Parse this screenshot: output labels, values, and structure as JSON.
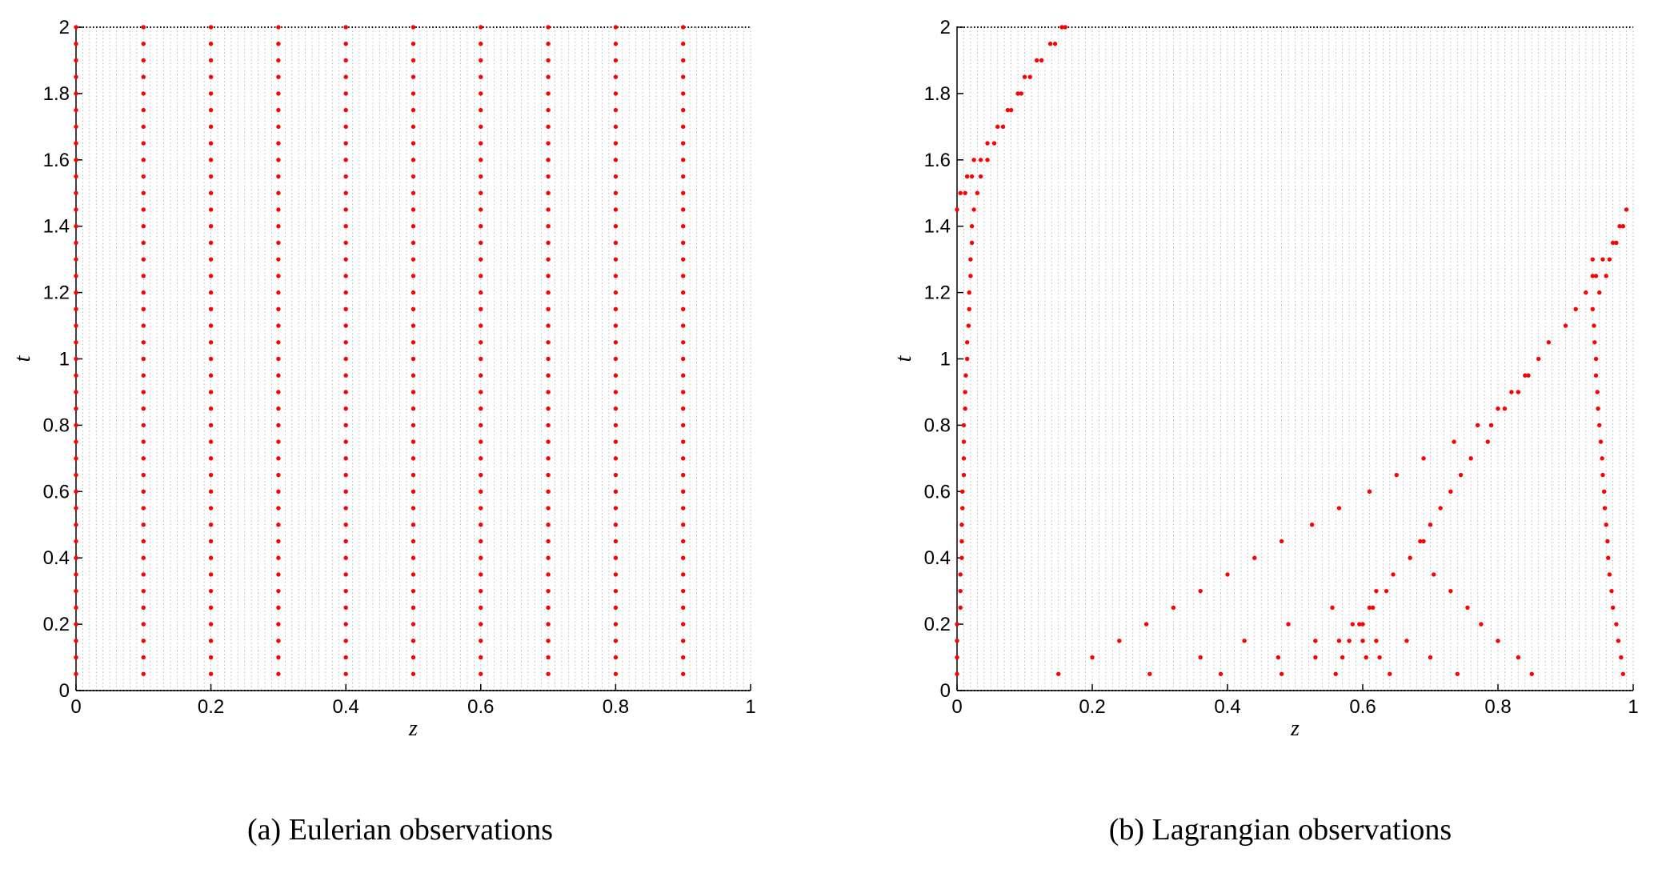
{
  "chart_data": [
    {
      "type": "scatter",
      "caption": "(a) Eulerian observations",
      "xlabel": "z",
      "ylabel": "t",
      "xlim": [
        0,
        1
      ],
      "ylim": [
        0,
        2
      ],
      "xticks": [
        0,
        0.2,
        0.4,
        0.6,
        0.8,
        1
      ],
      "xtick_labels": [
        "0",
        "0.2",
        "0.4",
        "0.6",
        "0.8",
        "1"
      ],
      "yticks": [
        0,
        0.2,
        0.4,
        0.6,
        0.8,
        1,
        1.2,
        1.4,
        1.6,
        1.8,
        2
      ],
      "ytick_labels": [
        "0",
        "0.2",
        "0.4",
        "0.6",
        "0.8",
        "1",
        "1.2",
        "1.4",
        "1.6",
        "1.8",
        "2"
      ],
      "grid": "dotted mesh of computational nodes",
      "mesh": {
        "dz": 0.01,
        "dt": 0.02
      },
      "marker_color": "#ff0000",
      "series": [
        {
          "z_positions": [
            0,
            0.1,
            0.2,
            0.3,
            0.4,
            0.5,
            0.6,
            0.7,
            0.8,
            0.9
          ],
          "t_values": [
            0.05,
            0.1,
            0.15,
            0.2,
            0.25,
            0.3,
            0.35,
            0.4,
            0.45,
            0.5,
            0.55,
            0.6,
            0.65,
            0.7,
            0.75,
            0.8,
            0.85,
            0.9,
            0.95,
            1.0,
            1.05,
            1.1,
            1.15,
            1.2,
            1.25,
            1.3,
            1.35,
            1.4,
            1.45,
            1.5,
            1.55,
            1.6,
            1.65,
            1.7,
            1.75,
            1.8,
            1.85,
            1.9,
            1.95,
            2.0
          ]
        }
      ]
    },
    {
      "type": "scatter",
      "caption": "(b) Lagrangian observations",
      "xlabel": "z",
      "ylabel": "t",
      "xlim": [
        0,
        1
      ],
      "ylim": [
        0,
        2
      ],
      "xticks": [
        0,
        0.2,
        0.4,
        0.6,
        0.8,
        1
      ],
      "xtick_labels": [
        "0",
        "0.2",
        "0.4",
        "0.6",
        "0.8",
        "1"
      ],
      "yticks": [
        0,
        0.2,
        0.4,
        0.6,
        0.8,
        1,
        1.2,
        1.4,
        1.6,
        1.8,
        2
      ],
      "ytick_labels": [
        "0",
        "0.2",
        "0.4",
        "0.6",
        "0.8",
        "1",
        "1.2",
        "1.4",
        "1.6",
        "1.8",
        "2"
      ],
      "grid": "dotted mesh of computational nodes",
      "mesh": {
        "dz": 0.01,
        "dt": 0.02
      },
      "marker_color": "#ff0000",
      "series": [
        {
          "points": [
            [
              0.0,
              0.05
            ],
            [
              0.0,
              0.1
            ],
            [
              0.0,
              0.15
            ],
            [
              0.0,
              0.2
            ],
            [
              0.005,
              0.25
            ],
            [
              0.005,
              0.3
            ],
            [
              0.005,
              0.35
            ],
            [
              0.007,
              0.4
            ],
            [
              0.007,
              0.45
            ],
            [
              0.007,
              0.5
            ],
            [
              0.008,
              0.55
            ],
            [
              0.008,
              0.6
            ],
            [
              0.01,
              0.65
            ],
            [
              0.01,
              0.7
            ],
            [
              0.01,
              0.75
            ],
            [
              0.01,
              0.8
            ],
            [
              0.012,
              0.85
            ],
            [
              0.012,
              0.9
            ],
            [
              0.013,
              0.95
            ],
            [
              0.015,
              1.0
            ],
            [
              0.015,
              1.05
            ],
            [
              0.017,
              1.1
            ],
            [
              0.018,
              1.15
            ],
            [
              0.018,
              1.2
            ],
            [
              0.02,
              1.25
            ],
            [
              0.02,
              1.3
            ],
            [
              0.022,
              1.35
            ],
            [
              0.022,
              1.4
            ],
            [
              0.025,
              1.45
            ],
            [
              0.0,
              1.45
            ],
            [
              0.005,
              1.5
            ],
            [
              0.012,
              1.5
            ],
            [
              0.015,
              1.55
            ],
            [
              0.022,
              1.55
            ],
            [
              0.03,
              1.5
            ],
            [
              0.025,
              1.6
            ],
            [
              0.035,
              1.6
            ],
            [
              0.035,
              1.55
            ],
            [
              0.045,
              1.6
            ],
            [
              0.045,
              1.65
            ],
            [
              0.055,
              1.65
            ],
            [
              0.06,
              1.7
            ],
            [
              0.068,
              1.7
            ],
            [
              0.075,
              1.75
            ],
            [
              0.08,
              1.75
            ],
            [
              0.09,
              1.8
            ],
            [
              0.095,
              1.8
            ],
            [
              0.1,
              1.85
            ],
            [
              0.108,
              1.85
            ],
            [
              0.118,
              1.9
            ],
            [
              0.125,
              1.9
            ],
            [
              0.138,
              1.95
            ],
            [
              0.145,
              1.95
            ],
            [
              0.155,
              2.0
            ],
            [
              0.16,
              2.0
            ],
            [
              0.15,
              0.05
            ],
            [
              0.2,
              0.1
            ],
            [
              0.24,
              0.15
            ],
            [
              0.28,
              0.2
            ],
            [
              0.285,
              0.05
            ],
            [
              0.32,
              0.25
            ],
            [
              0.36,
              0.3
            ],
            [
              0.36,
              0.1
            ],
            [
              0.39,
              0.05
            ],
            [
              0.4,
              0.35
            ],
            [
              0.425,
              0.15
            ],
            [
              0.44,
              0.4
            ],
            [
              0.475,
              0.1
            ],
            [
              0.48,
              0.05
            ],
            [
              0.48,
              0.45
            ],
            [
              0.49,
              0.2
            ],
            [
              0.525,
              0.5
            ],
            [
              0.53,
              0.15
            ],
            [
              0.53,
              0.1
            ],
            [
              0.555,
              0.25
            ],
            [
              0.56,
              0.05
            ],
            [
              0.565,
              0.15
            ],
            [
              0.565,
              0.55
            ],
            [
              0.57,
              0.1
            ],
            [
              0.58,
              0.15
            ],
            [
              0.585,
              0.2
            ],
            [
              0.595,
              0.2
            ],
            [
              0.6,
              0.2
            ],
            [
              0.6,
              0.15
            ],
            [
              0.605,
              0.1
            ],
            [
              0.61,
              0.6
            ],
            [
              0.61,
              0.25
            ],
            [
              0.615,
              0.25
            ],
            [
              0.62,
              0.3
            ],
            [
              0.62,
              0.15
            ],
            [
              0.625,
              0.1
            ],
            [
              0.635,
              0.3
            ],
            [
              0.64,
              0.05
            ],
            [
              0.645,
              0.35
            ],
            [
              0.65,
              0.65
            ],
            [
              0.665,
              0.15
            ],
            [
              0.67,
              0.4
            ],
            [
              0.685,
              0.45
            ],
            [
              0.69,
              0.7
            ],
            [
              0.69,
              0.45
            ],
            [
              0.7,
              0.1
            ],
            [
              0.7,
              0.5
            ],
            [
              0.705,
              0.35
            ],
            [
              0.715,
              0.55
            ],
            [
              0.73,
              0.6
            ],
            [
              0.73,
              0.3
            ],
            [
              0.735,
              0.75
            ],
            [
              0.74,
              0.05
            ],
            [
              0.745,
              0.65
            ],
            [
              0.755,
              0.25
            ],
            [
              0.76,
              0.7
            ],
            [
              0.77,
              0.8
            ],
            [
              0.775,
              0.2
            ],
            [
              0.785,
              0.75
            ],
            [
              0.79,
              0.8
            ],
            [
              0.8,
              0.85
            ],
            [
              0.8,
              0.15
            ],
            [
              0.81,
              0.85
            ],
            [
              0.82,
              0.9
            ],
            [
              0.83,
              0.9
            ],
            [
              0.83,
              0.1
            ],
            [
              0.84,
              0.95
            ],
            [
              0.845,
              0.95
            ],
            [
              0.85,
              0.05
            ],
            [
              0.86,
              1.0
            ],
            [
              0.875,
              1.05
            ],
            [
              0.9,
              1.1
            ],
            [
              0.915,
              1.15
            ],
            [
              0.93,
              1.2
            ],
            [
              0.945,
              1.25
            ],
            [
              0.95,
              1.2
            ],
            [
              0.955,
              1.3
            ],
            [
              0.96,
              1.25
            ],
            [
              0.965,
              1.3
            ],
            [
              0.97,
              1.35
            ],
            [
              0.975,
              1.35
            ],
            [
              0.98,
              1.4
            ],
            [
              0.985,
              1.4
            ],
            [
              0.99,
              1.45
            ],
            [
              0.94,
              1.3
            ],
            [
              0.94,
              1.25
            ],
            [
              0.94,
              1.15
            ],
            [
              0.942,
              1.1
            ],
            [
              0.943,
              1.05
            ],
            [
              0.945,
              1.0
            ],
            [
              0.945,
              0.95
            ],
            [
              0.947,
              0.9
            ],
            [
              0.948,
              0.85
            ],
            [
              0.95,
              0.8
            ],
            [
              0.952,
              0.75
            ],
            [
              0.954,
              0.7
            ],
            [
              0.955,
              0.65
            ],
            [
              0.957,
              0.6
            ],
            [
              0.958,
              0.55
            ],
            [
              0.96,
              0.5
            ],
            [
              0.962,
              0.45
            ],
            [
              0.963,
              0.4
            ],
            [
              0.965,
              0.35
            ],
            [
              0.968,
              0.3
            ],
            [
              0.97,
              0.25
            ],
            [
              0.975,
              0.2
            ],
            [
              0.978,
              0.15
            ],
            [
              0.982,
              0.1
            ],
            [
              0.985,
              0.05
            ]
          ]
        }
      ]
    }
  ]
}
